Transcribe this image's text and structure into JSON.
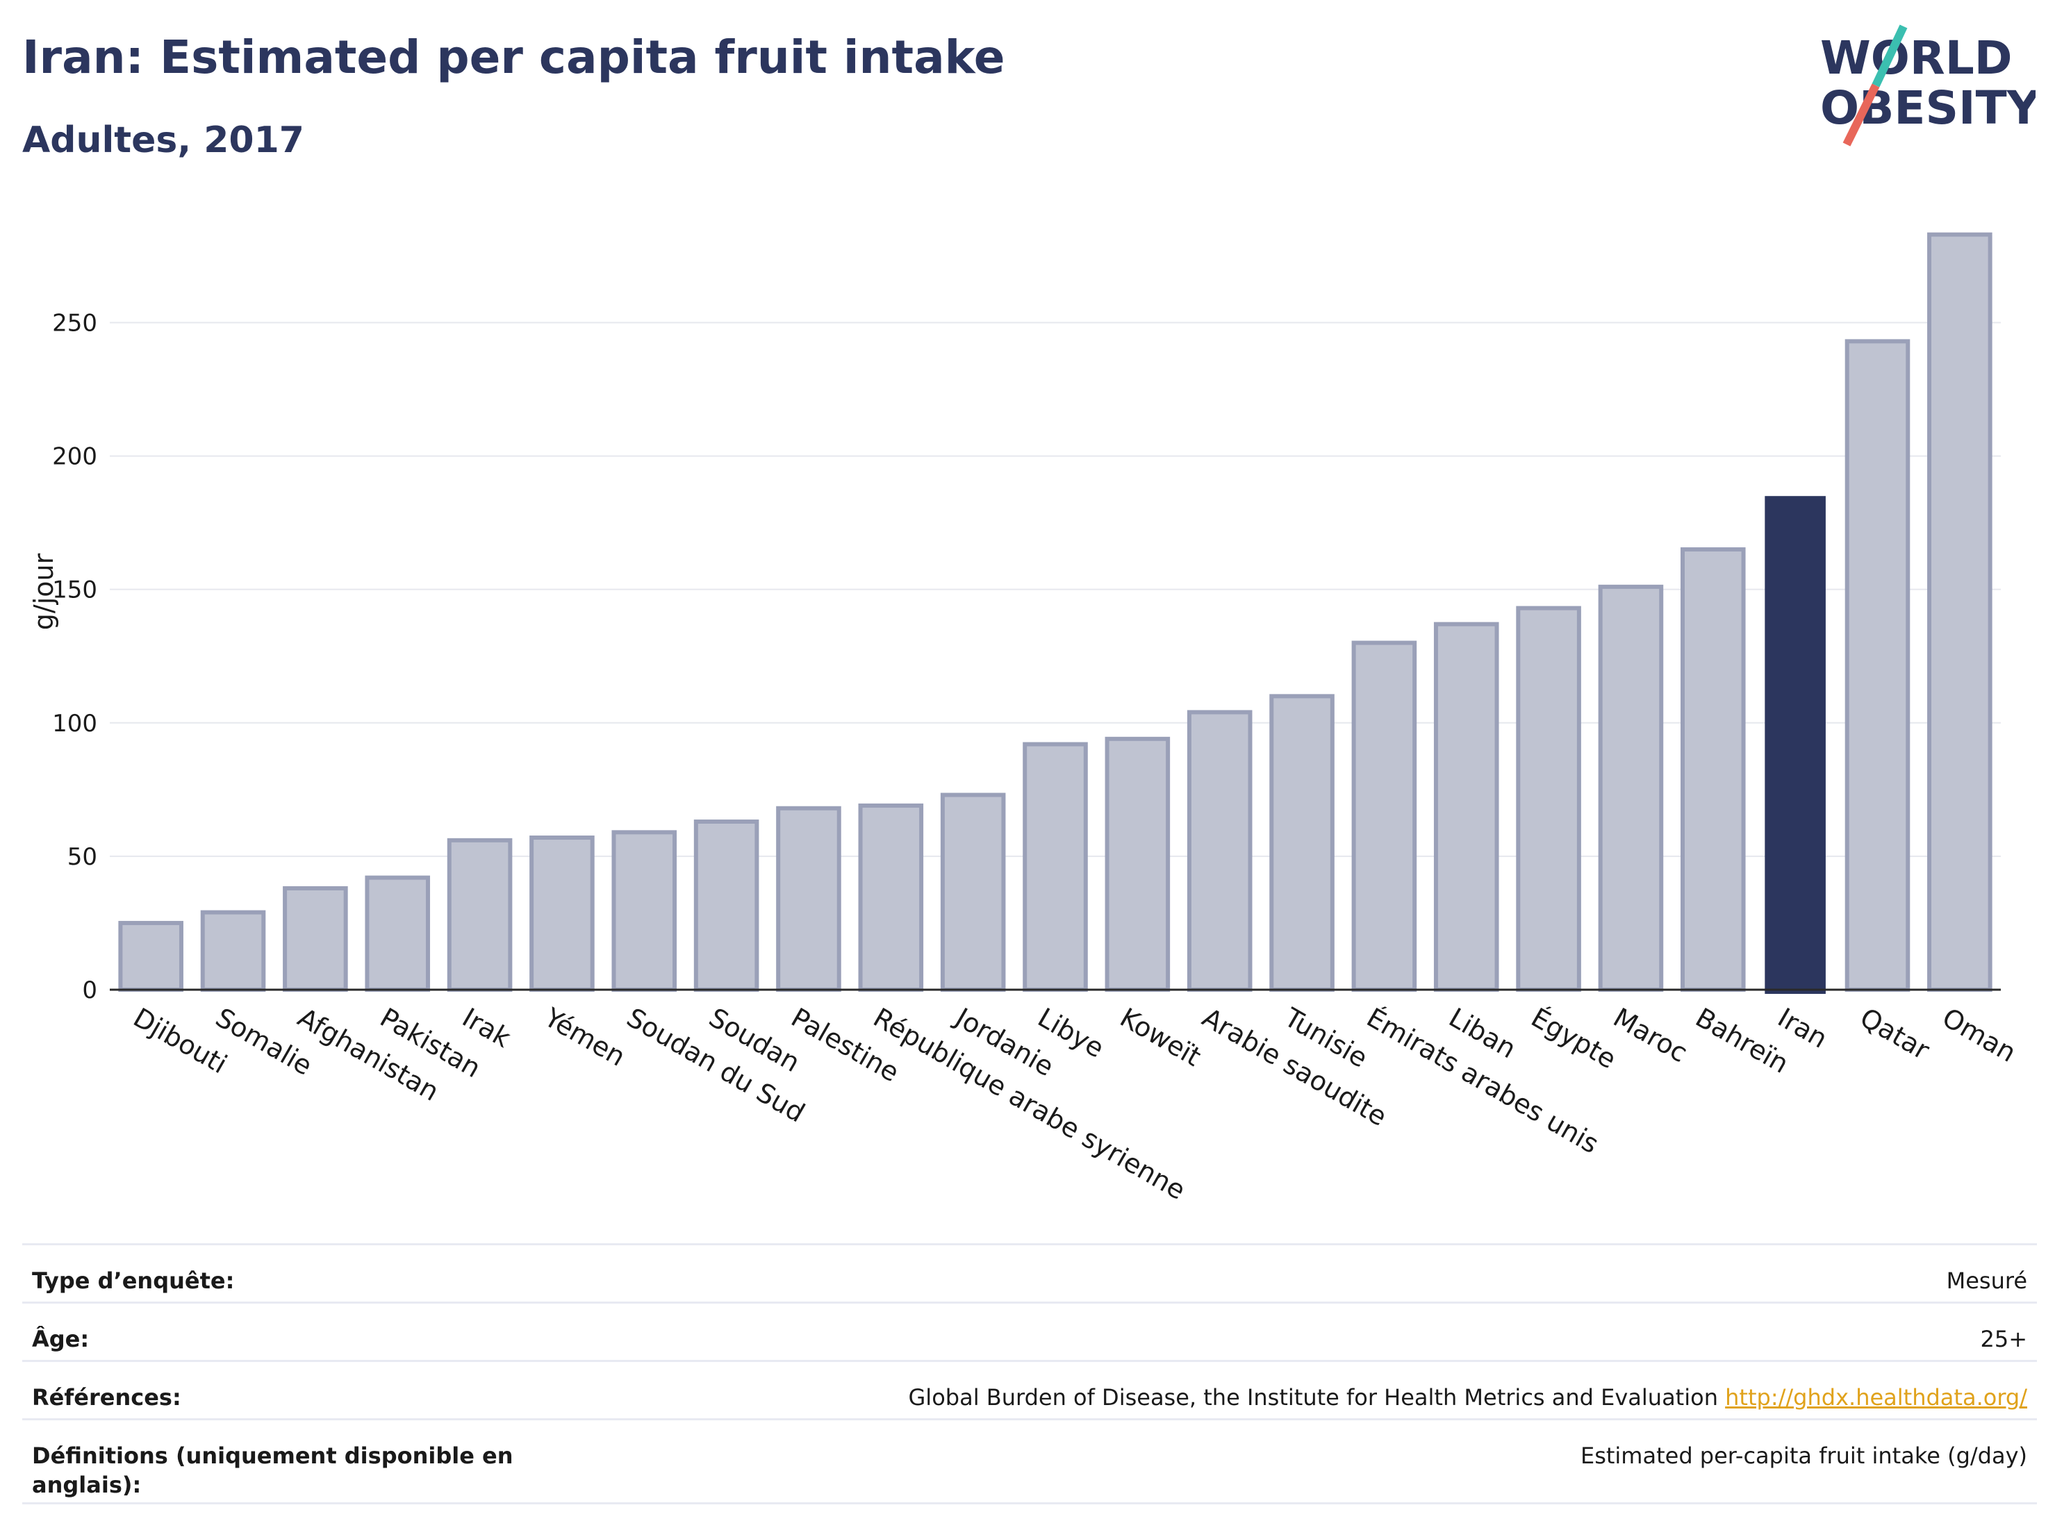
{
  "header": {
    "title": "Iran: Estimated per capita fruit intake",
    "subtitle": "Adultes, 2017"
  },
  "logo": {
    "line1": "WORLD",
    "line2": "OBESITY",
    "text_color": "#2c365e",
    "slash_top_color": "#3bbfb0",
    "slash_bottom_color": "#e8675a"
  },
  "colors": {
    "bar": "#bfc3d1",
    "bar_edge": "#9aa0b8",
    "highlight": "#2c365e",
    "grid": "#e6e8ee"
  },
  "chart_data": {
    "type": "bar",
    "title": "Iran: Estimated per capita fruit intake",
    "subtitle": "Adultes, 2017",
    "xlabel": "",
    "ylabel": "g/jour",
    "ylim": [
      0,
      285
    ],
    "yticks": [
      0,
      50,
      100,
      150,
      200,
      250
    ],
    "grid": true,
    "highlight_category": "Iran",
    "categories": [
      "Djibouti",
      "Somalie",
      "Afghanistan",
      "Pakistan",
      "Irak",
      "Yémen",
      "Soudan du Sud",
      "Soudan",
      "Palestine",
      "République arabe syrienne",
      "Jordanie",
      "Libye",
      "Koweït",
      "Arabie saoudite",
      "Tunisie",
      "Émirats arabes unis",
      "Liban",
      "Égypte",
      "Maroc",
      "Bahreïn",
      "Iran",
      "Qatar",
      "Oman"
    ],
    "values": [
      25,
      29,
      38,
      42,
      56,
      57,
      59,
      63,
      68,
      69,
      73,
      92,
      94,
      104,
      110,
      130,
      137,
      143,
      151,
      165,
      185,
      243,
      283
    ]
  },
  "meta": [
    {
      "key": "Type d’enquête:",
      "value": "Mesuré"
    },
    {
      "key": "Âge:",
      "value": "25+"
    },
    {
      "key": "Références:",
      "value": "Global Burden of Disease, the Institute for Health Metrics and Evaluation",
      "link": "http://ghdx.healthdata.org/"
    },
    {
      "key": "Définitions (uniquement disponible en anglais):",
      "value": "Estimated per-capita fruit intake (g/day)"
    }
  ]
}
